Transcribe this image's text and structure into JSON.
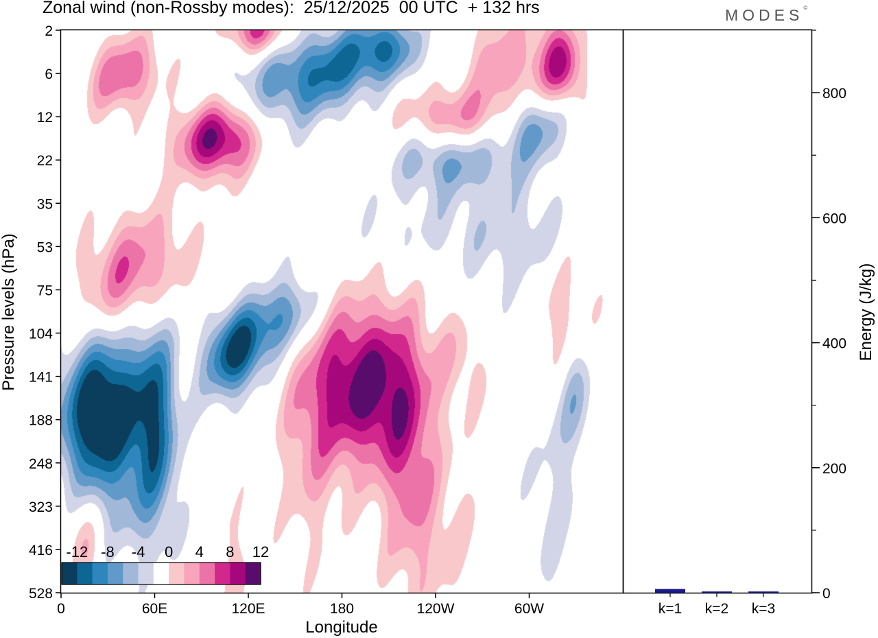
{
  "header": {
    "title": "Zonal wind (non-Rossby modes):  25/12/2025  00 UTC  + 132 hrs",
    "logo": "MODES",
    "logo_mark": "©"
  },
  "chart_data": [
    {
      "type": "heatmap",
      "title": "Zonal wind (non-Rossby modes)",
      "xlabel": "Longitude",
      "ylabel": "Pressure levels (hPa)",
      "x_ticks": [
        "0",
        "60E",
        "120E",
        "180",
        "120W",
        "60W"
      ],
      "y_ticks": [
        "2",
        "6",
        "12",
        "22",
        "35",
        "53",
        "75",
        "104",
        "141",
        "188",
        "248",
        "323",
        "416",
        "528"
      ],
      "colorbar": {
        "tick_labels": [
          "-12",
          "-8",
          "-4",
          "0",
          "4",
          "8",
          "12"
        ],
        "levels": [
          -14,
          -12,
          -10,
          -8,
          -6,
          -4,
          -2,
          2,
          4,
          6,
          8,
          10,
          12,
          14
        ],
        "colors": [
          "#0b3d5c",
          "#0e6694",
          "#2f86bd",
          "#6199c8",
          "#a2b8d9",
          "#d2d5e7",
          "#ffffff",
          "#f9c8ca",
          "#f7a4bc",
          "#ec73a8",
          "#d2278d",
          "#a6087c",
          "#5a0c6d"
        ]
      },
      "features": [
        {
          "lon": 25,
          "lev": 8.8,
          "sx": 18,
          "sy": 1.2,
          "amp": -16,
          "rot": -0.4
        },
        {
          "lon": 60,
          "lev": 8.9,
          "sx": 10,
          "sy": 1.6,
          "amp": -10,
          "rot": 0
        },
        {
          "lon": 112,
          "lev": 7.4,
          "sx": 14,
          "sy": 0.7,
          "amp": -13,
          "rot": -0.75
        },
        {
          "lon": 145,
          "lev": 6.6,
          "sx": 14,
          "sy": 0.6,
          "amp": -8,
          "rot": -0.75
        },
        {
          "lon": 45,
          "lev": 10.8,
          "sx": 18,
          "sy": 1.1,
          "amp": -3.5,
          "rot": 0
        },
        {
          "lon": 45,
          "lev": 5.6,
          "sx": 22,
          "sy": 0.9,
          "amp": 8,
          "rot": -0.7
        },
        {
          "lon": 100,
          "lev": 2.5,
          "sx": 18,
          "sy": 0.6,
          "amp": 13,
          "rot": -0.2
        },
        {
          "lon": 195,
          "lev": 8.2,
          "sx": 24,
          "sy": 1.3,
          "amp": 13,
          "rot": 0
        },
        {
          "lon": 160,
          "lev": 9.5,
          "sx": 14,
          "sy": 1.8,
          "amp": 4,
          "rot": 0
        },
        {
          "lon": 222,
          "lev": 9.8,
          "sx": 12,
          "sy": 2.0,
          "amp": 5,
          "rot": 0
        },
        {
          "lon": 240,
          "lev": 11.5,
          "sx": 20,
          "sy": 1.5,
          "amp": 2.8,
          "rot": 0
        },
        {
          "lon": 108,
          "lev": 12.3,
          "sx": 10,
          "sy": 1.0,
          "amp": 2.6,
          "rot": 0
        },
        {
          "lon": 255,
          "lev": 7.6,
          "sx": 12,
          "sy": 0.8,
          "amp": 3,
          "rot": 0
        },
        {
          "lon": 145,
          "lev": 1.2,
          "sx": 30,
          "sy": 0.8,
          "amp": -6,
          "rot": -0.35
        },
        {
          "lon": 180,
          "lev": 0.8,
          "sx": 22,
          "sy": 0.6,
          "amp": -7,
          "rot": -0.5
        },
        {
          "lon": 210,
          "lev": 0.4,
          "sx": 14,
          "sy": 0.5,
          "amp": -7,
          "rot": 0
        },
        {
          "lon": 250,
          "lev": 2.0,
          "sx": 22,
          "sy": 0.5,
          "amp": 6,
          "rot": 0
        },
        {
          "lon": 250,
          "lev": 3.0,
          "sx": 26,
          "sy": 0.5,
          "amp": -6,
          "rot": 0
        },
        {
          "lon": 305,
          "lev": 2.2,
          "sx": 14,
          "sy": 0.6,
          "amp": -9,
          "rot": -0.4
        },
        {
          "lon": 250,
          "lev": 4.5,
          "sx": 40,
          "sy": 0.8,
          "amp": -2.6,
          "rot": 0
        },
        {
          "lon": 300,
          "lev": 5.0,
          "sx": 20,
          "sy": 1.0,
          "amp": -2.6,
          "rot": 0
        },
        {
          "lon": 40,
          "lev": 1.0,
          "sx": 16,
          "sy": 0.6,
          "amp": 8,
          "rot": -0.4
        },
        {
          "lon": 310,
          "lev": 1.0,
          "sx": 14,
          "sy": 1.0,
          "amp": 6,
          "rot": 0
        },
        {
          "lon": 322,
          "lev": 0.8,
          "sx": 8,
          "sy": 0.6,
          "amp": 7,
          "rot": 0
        },
        {
          "lon": 320,
          "lev": 6.6,
          "sx": 14,
          "sy": 1.2,
          "amp": 4,
          "rot": 0
        },
        {
          "lon": 125,
          "lev": 0.0,
          "sx": 14,
          "sy": 0.4,
          "amp": 9,
          "rot": 0
        },
        {
          "lon": 330,
          "lev": 8.4,
          "sx": 8,
          "sy": 1.0,
          "amp": -5,
          "rot": 0
        },
        {
          "lon": 315,
          "lev": 10.8,
          "sx": 12,
          "sy": 2.0,
          "amp": -2.6,
          "rot": 0
        },
        {
          "lon": 15,
          "lev": 11.8,
          "sx": 8,
          "sy": 0.8,
          "amp": 4,
          "rot": 0
        },
        {
          "lon": 278,
          "lev": 0.8,
          "sx": 12,
          "sy": 0.8,
          "amp": 5,
          "rot": 0
        }
      ]
    },
    {
      "type": "bar",
      "ylabel": "Energy (J/kg)",
      "categories": [
        "k=1",
        "k=2",
        "k=3"
      ],
      "values": [
        6,
        2,
        2
      ],
      "ylim": [
        0,
        900
      ],
      "y_ticks": [
        "0",
        "200",
        "400",
        "600",
        "800"
      ],
      "bar_color": "#1a1a8c"
    }
  ]
}
